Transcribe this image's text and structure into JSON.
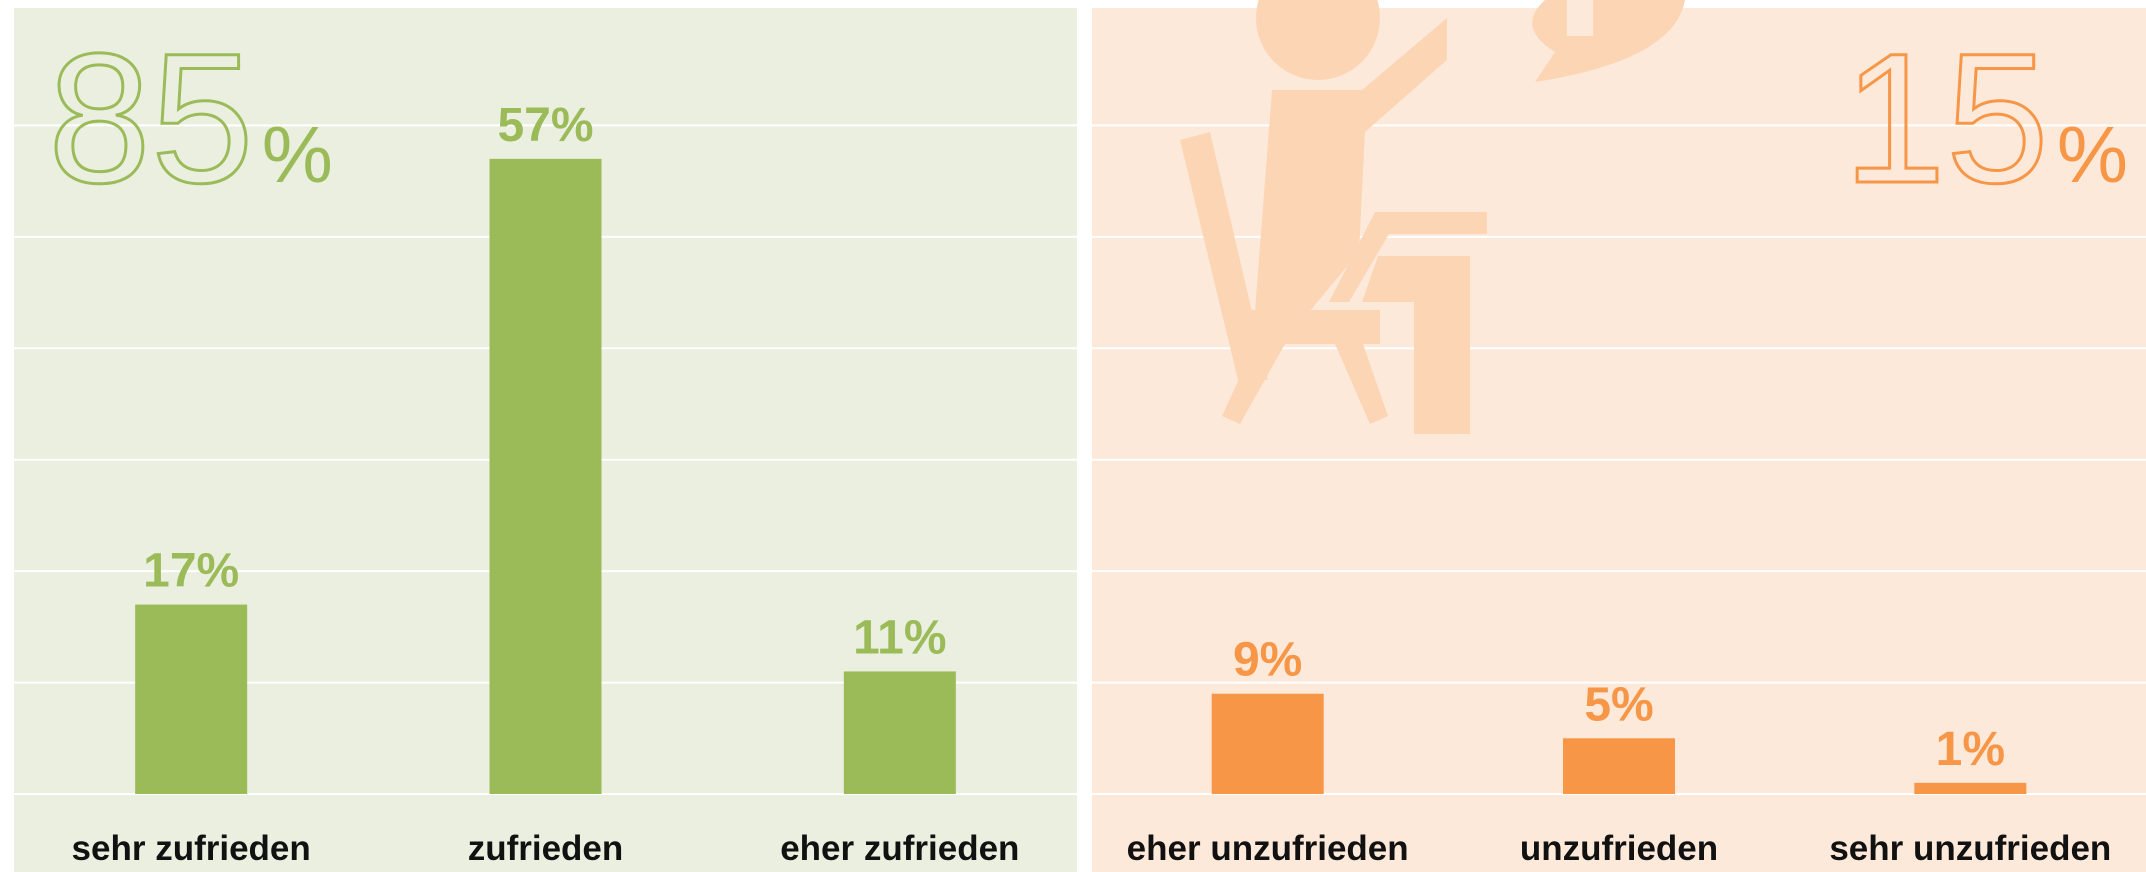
{
  "chart_data": [
    {
      "type": "bar",
      "total": 85,
      "total_unit": "%",
      "categories": [
        "sehr zufrieden",
        "zufrieden",
        "eher zufrieden"
      ],
      "values": [
        17,
        57,
        11
      ],
      "value_labels": [
        "17%",
        "57%",
        "11%"
      ],
      "color": "#9bbb59",
      "background": "#ebefe0",
      "ylim": [
        0,
        70
      ],
      "yticks": [
        0,
        10,
        20,
        30,
        40,
        50,
        60
      ],
      "grid": true
    },
    {
      "type": "bar",
      "total": 15,
      "total_unit": "%",
      "categories": [
        "eher unzufrieden",
        "unzufrieden",
        "sehr unzufrieden"
      ],
      "values": [
        9,
        5,
        1
      ],
      "value_labels": [
        "9%",
        "5%",
        "1%"
      ],
      "color": "#f79646",
      "background": "#fde9da",
      "ylim": [
        0,
        70
      ],
      "yticks": [
        0,
        10,
        20,
        30,
        40,
        50,
        60
      ],
      "grid": true
    }
  ]
}
